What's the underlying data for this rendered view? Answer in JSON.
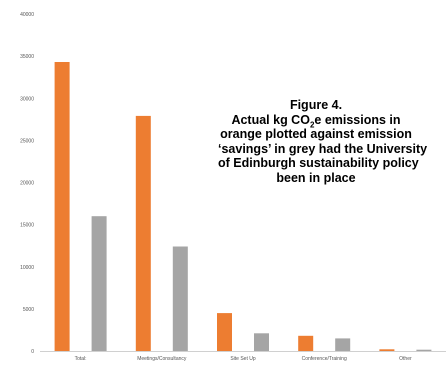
{
  "chart_data": {
    "type": "bar",
    "categories": [
      "Total:",
      "Meetings/Consultancy",
      "Site Set Up",
      "Conference/Training",
      "Other"
    ],
    "series": [
      {
        "color": "#ED7D31",
        "values": [
          34300,
          27900,
          4500,
          1800,
          200
        ]
      },
      {
        "color": "#A5A5A5",
        "values": [
          16000,
          12400,
          2100,
          1500,
          150
        ]
      }
    ],
    "ylim": [
      0,
      40000
    ],
    "yticks": [
      0,
      5000,
      10000,
      15000,
      20000,
      25000,
      30000,
      35000,
      40000
    ],
    "grid": false,
    "legend": "none"
  },
  "annotation": {
    "line1": "Figure 4.",
    "line2_pre": "Actual kg CO",
    "line2_sub": "2",
    "line2_post": "e emissions in",
    "line3": "orange plotted against emission",
    "line4": "‘savings’ in grey had the University",
    "line5": "of Edinburgh sustainability policy",
    "line6": "been in place"
  }
}
